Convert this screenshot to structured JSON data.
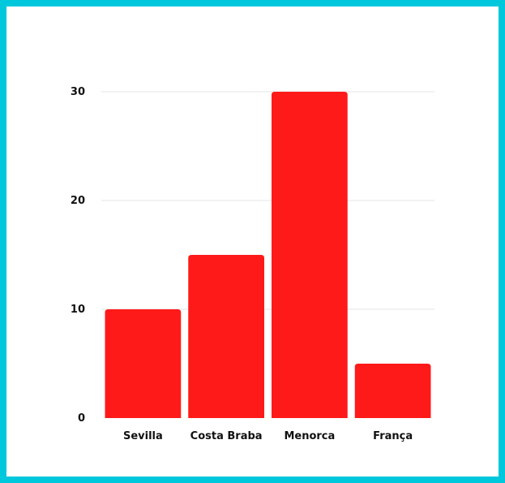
{
  "chart_data": {
    "type": "bar",
    "title": "",
    "xlabel": "",
    "ylabel": "",
    "categories": [
      "Sevilla",
      "Costa Braba",
      "Menorca",
      "França"
    ],
    "values": [
      10,
      15,
      30,
      5
    ],
    "ylim": [
      0,
      30
    ],
    "yticks": [
      0,
      10,
      20,
      30
    ],
    "grid": true,
    "legend": "none",
    "colors": {
      "bar": "#FF1A1A",
      "border": "#00C8DC",
      "gridline": "#E6E6E6"
    }
  }
}
